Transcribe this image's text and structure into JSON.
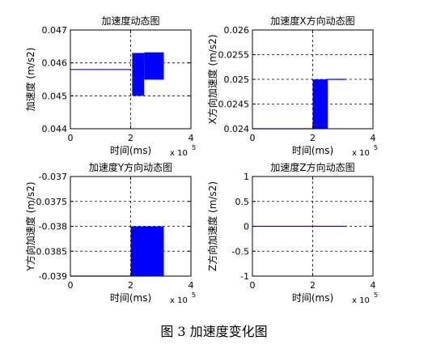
{
  "figure": {
    "caption": "图 3  加速度变化图"
  },
  "chart_data": [
    {
      "type": "line",
      "title": "加速度动态图",
      "xlabel": "时间(ms)",
      "ylabel": "加速度 (m/s2)",
      "xlim": [
        0,
        4
      ],
      "ylim": [
        0.044,
        0.047
      ],
      "x_exponent": "x 10",
      "x_exponent_power": "5",
      "x_ticks": [
        "0",
        "2",
        "4"
      ],
      "y_ticks": [
        "0.044",
        "0.045",
        "0.046",
        "0.047"
      ],
      "grid": "on",
      "color": "#0000ff",
      "series": [
        {
          "x": [
            0,
            2.0
          ],
          "y": [
            0.0458,
            0.0458
          ]
        }
      ],
      "bands": [
        {
          "x0": 2.05,
          "x1": 2.45,
          "y0": 0.045,
          "y1": 0.0463
        },
        {
          "x0": 2.45,
          "x1": 3.1,
          "y0": 0.04549,
          "y1": 0.04632
        }
      ]
    },
    {
      "type": "line",
      "title": "加速度X方向动态图",
      "xlabel": "时间(ms)",
      "ylabel": "X方向加速度 (m/s2)",
      "xlim": [
        0,
        4
      ],
      "ylim": [
        0.024,
        0.026
      ],
      "x_exponent": "x 10",
      "x_exponent_power": "5",
      "x_ticks": [
        "0",
        "2",
        "4"
      ],
      "y_ticks": [
        "0.024",
        "0.0245",
        "0.025",
        "0.0255",
        "0.026"
      ],
      "grid": "on",
      "color": "#0000ff",
      "series": [
        {
          "x": [
            0,
            2.0
          ],
          "y": [
            0.024,
            0.024
          ]
        },
        {
          "x": [
            2.5,
            3.1
          ],
          "y": [
            0.025,
            0.025
          ]
        }
      ],
      "bands": [
        {
          "x0": 2.0,
          "x1": 2.5,
          "y0": 0.024,
          "y1": 0.025
        }
      ]
    },
    {
      "type": "line",
      "title": "加速度Y方向动态图",
      "xlabel": "时间(ms)",
      "ylabel": "Y方向加速度 (m/s2)",
      "xlim": [
        0,
        4
      ],
      "ylim": [
        -0.039,
        -0.037
      ],
      "x_exponent": "x 10",
      "x_exponent_power": "5",
      "x_ticks": [
        "0",
        "2",
        "4"
      ],
      "y_ticks": [
        "-0.039",
        "-0.0385",
        "-0.038",
        "-0.0375",
        "-0.037"
      ],
      "grid": "on",
      "color": "#0000ff",
      "series": [
        {
          "x": [
            0,
            2.0
          ],
          "y": [
            -0.039,
            -0.039
          ]
        }
      ],
      "bands": [
        {
          "x0": 2.0,
          "x1": 3.1,
          "y0": -0.039,
          "y1": -0.038
        }
      ]
    },
    {
      "type": "line",
      "title": "加速度Z方向动态图",
      "xlabel": "时间(ms)",
      "ylabel": "Z方向加速度 (m/s2)",
      "xlim": [
        0,
        4
      ],
      "ylim": [
        -1,
        1
      ],
      "x_exponent": "x 10",
      "x_exponent_power": "5",
      "x_ticks": [
        "0",
        "2",
        "4"
      ],
      "y_ticks": [
        "-1",
        "-0.5",
        "0",
        "0.5",
        "1"
      ],
      "grid": "on",
      "color": "#0000ff",
      "series": [
        {
          "x": [
            0,
            3.1
          ],
          "y": [
            0,
            0
          ]
        }
      ],
      "bands": []
    }
  ]
}
